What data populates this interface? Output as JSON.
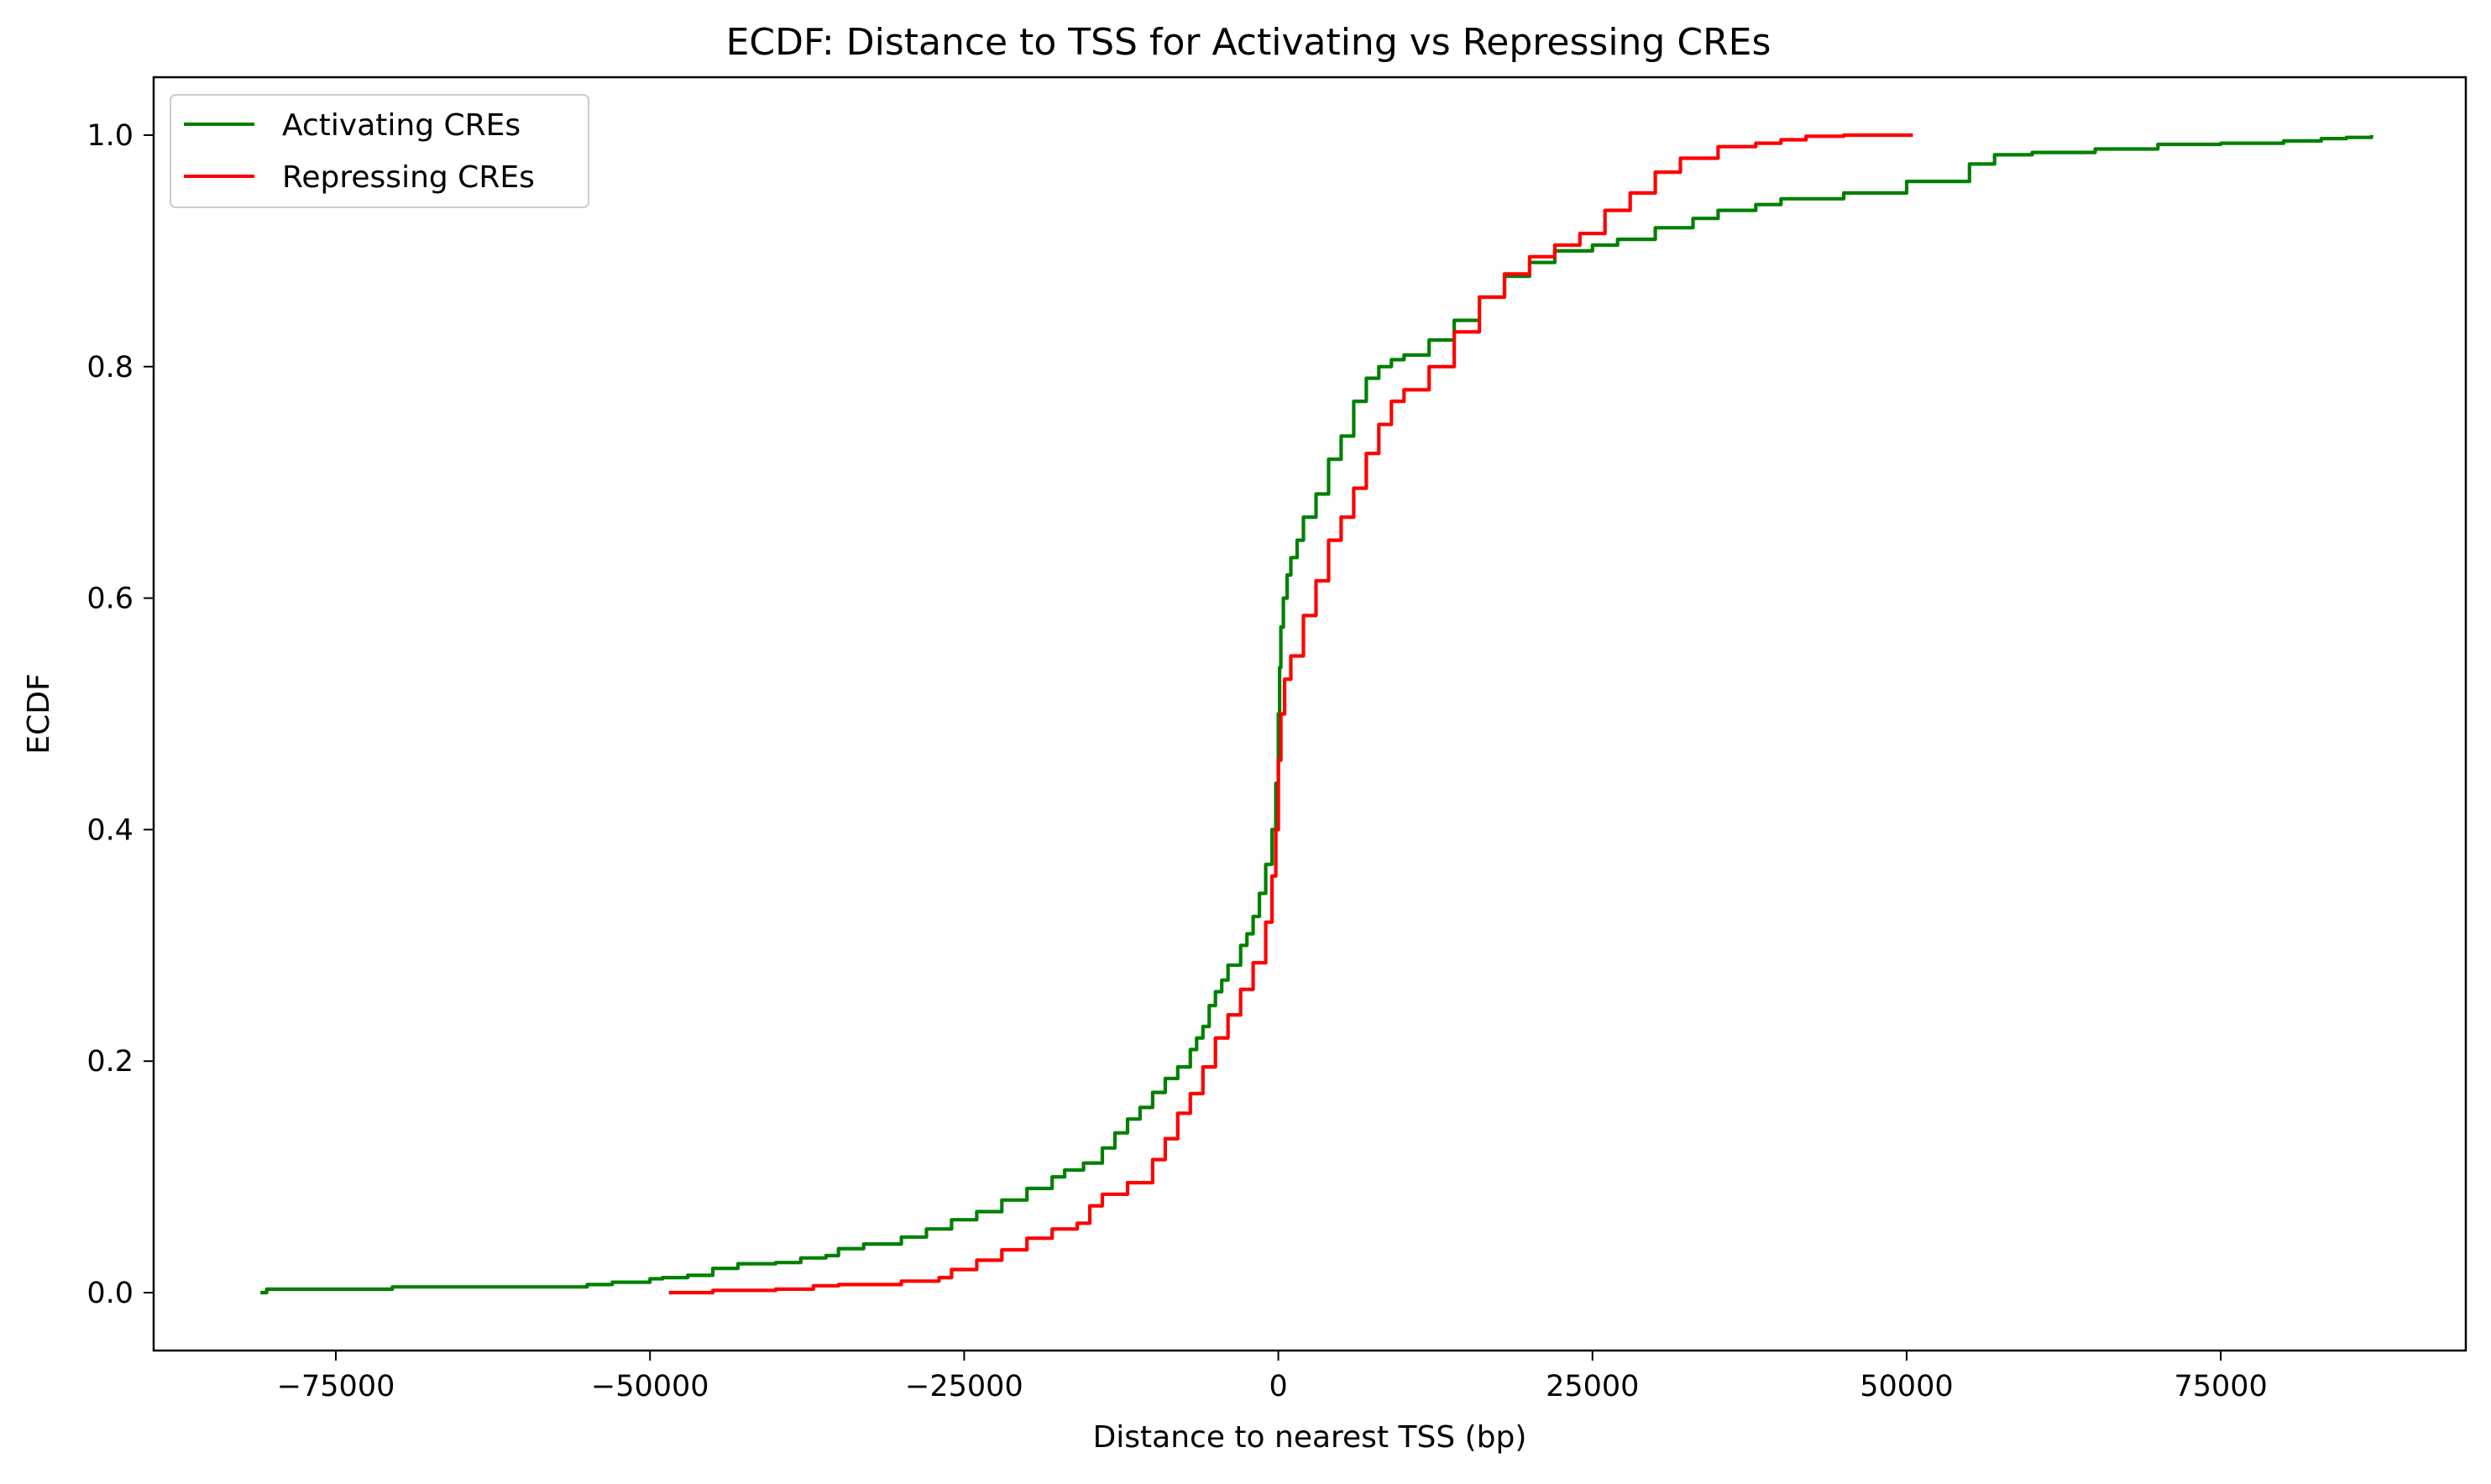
{
  "chart_data": {
    "type": "line",
    "title": "ECDF: Distance to TSS for Activating vs Repressing CREs",
    "xlabel": "Distance to nearest TSS (bp)",
    "ylabel": "ECDF",
    "xlim": [
      -89500,
      94500
    ],
    "ylim": [
      -0.05,
      1.05
    ],
    "xticks": [
      -75000,
      -50000,
      -25000,
      0,
      25000,
      50000,
      75000
    ],
    "xtick_labels": [
      "−75000",
      "−50000",
      "−25000",
      "0",
      "25000",
      "50000",
      "75000"
    ],
    "yticks": [
      0.0,
      0.2,
      0.4,
      0.6,
      0.8,
      1.0
    ],
    "ytick_labels": [
      "0.0",
      "0.2",
      "0.4",
      "0.6",
      "0.8",
      "1.0"
    ],
    "grid": false,
    "legend_position": "top-left",
    "series": [
      {
        "name": "Activating CREs",
        "color": "#008000",
        "x": [
          -81000,
          -80500,
          -75000,
          -71000,
          -70500,
          -62000,
          -57000,
          -55000,
          -53000,
          -50000,
          -49000,
          -47000,
          -45000,
          -43000,
          -40000,
          -38000,
          -36000,
          -35000,
          -33000,
          -30000,
          -28000,
          -26000,
          -24000,
          -22000,
          -20000,
          -18000,
          -17000,
          -15500,
          -14000,
          -13000,
          -12000,
          -11000,
          -10000,
          -9000,
          -8000,
          -7000,
          -6500,
          -6000,
          -5500,
          -5000,
          -4500,
          -4000,
          -3000,
          -2500,
          -2000,
          -1500,
          -1000,
          -500,
          -200,
          0,
          100,
          200,
          400,
          700,
          1000,
          1500,
          2000,
          3000,
          4000,
          5000,
          6000,
          7000,
          8000,
          9000,
          10000,
          12000,
          14000,
          16000,
          18000,
          20000,
          22000,
          25000,
          27000,
          30000,
          33000,
          35000,
          38000,
          40000,
          45000,
          50000,
          55000,
          57000,
          60000,
          65000,
          70000,
          75000,
          80000,
          83000,
          85000,
          87000
        ],
        "y": [
          0.0,
          0.003,
          0.003,
          0.003,
          0.005,
          0.005,
          0.005,
          0.007,
          0.009,
          0.012,
          0.013,
          0.015,
          0.021,
          0.025,
          0.026,
          0.03,
          0.032,
          0.038,
          0.042,
          0.048,
          0.055,
          0.063,
          0.07,
          0.08,
          0.09,
          0.1,
          0.106,
          0.112,
          0.125,
          0.138,
          0.15,
          0.16,
          0.173,
          0.185,
          0.195,
          0.21,
          0.22,
          0.23,
          0.248,
          0.26,
          0.27,
          0.283,
          0.3,
          0.31,
          0.325,
          0.345,
          0.37,
          0.4,
          0.44,
          0.5,
          0.54,
          0.575,
          0.6,
          0.62,
          0.635,
          0.65,
          0.67,
          0.69,
          0.72,
          0.74,
          0.77,
          0.79,
          0.8,
          0.806,
          0.81,
          0.823,
          0.84,
          0.86,
          0.878,
          0.89,
          0.9,
          0.905,
          0.91,
          0.92,
          0.928,
          0.935,
          0.94,
          0.945,
          0.95,
          0.96,
          0.975,
          0.983,
          0.985,
          0.988,
          0.992,
          0.993,
          0.995,
          0.997,
          0.998,
          1.0
        ]
      },
      {
        "name": "Repressing CREs",
        "color": "#ff0000",
        "x": [
          -48500,
          -45000,
          -40000,
          -37000,
          -35000,
          -30000,
          -27000,
          -26000,
          -24000,
          -22000,
          -20000,
          -18000,
          -16000,
          -15000,
          -14000,
          -12000,
          -10000,
          -9000,
          -8000,
          -7000,
          -6000,
          -5000,
          -4000,
          -3000,
          -2000,
          -1000,
          -500,
          -200,
          0,
          200,
          500,
          1000,
          2000,
          3000,
          4000,
          5000,
          6000,
          7000,
          8000,
          9000,
          10000,
          12000,
          14000,
          16000,
          18000,
          20000,
          22000,
          24000,
          26000,
          28000,
          30000,
          32000,
          35000,
          38000,
          40000,
          42000,
          45000,
          48000,
          50500
        ],
        "y": [
          0.0,
          0.002,
          0.003,
          0.006,
          0.007,
          0.01,
          0.013,
          0.02,
          0.028,
          0.037,
          0.047,
          0.055,
          0.06,
          0.075,
          0.085,
          0.095,
          0.115,
          0.133,
          0.155,
          0.172,
          0.195,
          0.22,
          0.24,
          0.262,
          0.285,
          0.32,
          0.36,
          0.4,
          0.46,
          0.5,
          0.53,
          0.55,
          0.585,
          0.615,
          0.65,
          0.67,
          0.695,
          0.725,
          0.75,
          0.77,
          0.78,
          0.8,
          0.83,
          0.86,
          0.88,
          0.895,
          0.905,
          0.915,
          0.935,
          0.95,
          0.968,
          0.98,
          0.99,
          0.993,
          0.996,
          0.999,
          1.0,
          1.0,
          1.0
        ]
      }
    ]
  }
}
